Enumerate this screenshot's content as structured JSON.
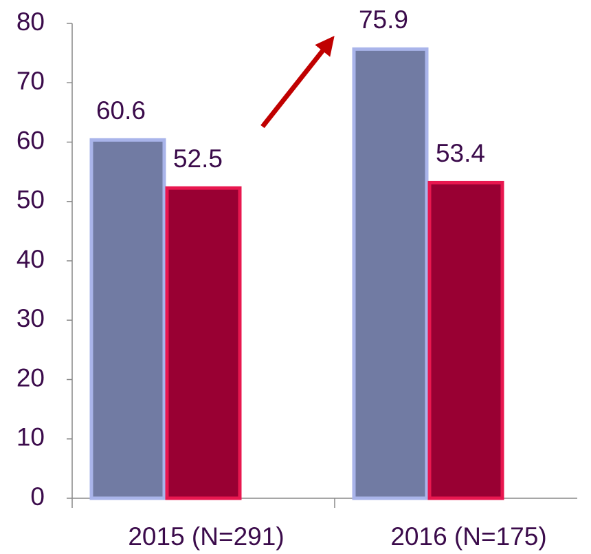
{
  "chart_data": {
    "type": "bar",
    "categories": [
      "2015 (N=291)",
      "2016 (N=175)"
    ],
    "series": [
      {
        "color": "#717ba3",
        "values": [
          60.6,
          75.9
        ]
      },
      {
        "color": "#990033",
        "values": [
          52.5,
          53.4
        ]
      }
    ],
    "ylim": [
      0,
      80
    ],
    "yticks": [
      0,
      10,
      20,
      30,
      40,
      50,
      60,
      70,
      80
    ],
    "grid": false
  }
}
